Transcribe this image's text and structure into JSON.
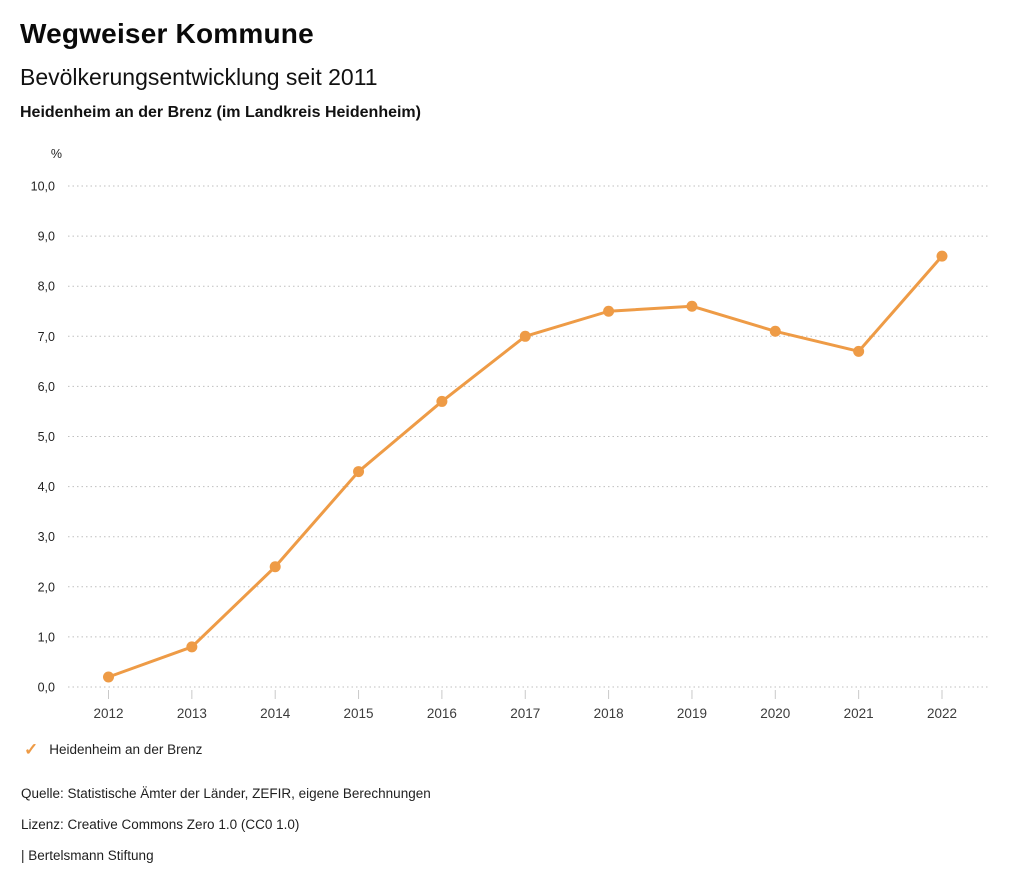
{
  "header": {
    "title": "Wegweiser Kommune",
    "subtitle": "Bevölkerungsentwicklung seit 2011",
    "region": "Heidenheim an der Brenz (im Landkreis Heidenheim)"
  },
  "chart_data": {
    "type": "line",
    "title": "Bevölkerungsentwicklung seit 2011",
    "subtitle": "Heidenheim an der Brenz (im Landkreis Heidenheim)",
    "unit": "%",
    "xlabel": "",
    "ylabel": "%",
    "categories": [
      "2012",
      "2013",
      "2014",
      "2015",
      "2016",
      "2017",
      "2018",
      "2019",
      "2020",
      "2021",
      "2022"
    ],
    "series": [
      {
        "name": "Heidenheim an der Brenz",
        "values": [
          0.2,
          0.8,
          2.4,
          4.3,
          5.7,
          7.0,
          7.5,
          7.6,
          7.1,
          6.7,
          8.6
        ],
        "color": "#EE9B46"
      }
    ],
    "ylim": [
      0,
      10
    ],
    "ytick_step": 1,
    "ytick_labels": [
      "0,0",
      "1,0",
      "2,0",
      "3,0",
      "4,0",
      "5,0",
      "6,0",
      "7,0",
      "8,0",
      "9,0",
      "10,0"
    ],
    "grid": "horizontal-dotted",
    "legend_position": "bottom-left"
  },
  "legend": {
    "check_icon": "✓",
    "label": "Heidenheim an der Brenz"
  },
  "footer": {
    "source": "Quelle: Statistische Ämter der Länder, ZEFIR, eigene Berechnungen",
    "license": "Lizenz: Creative Commons Zero 1.0 (CC0 1.0)",
    "attribution": "| Bertelsmann Stiftung"
  },
  "colors": {
    "accent": "#EE9B46",
    "grid": "#bfbfbf",
    "tick": "#c9c9c9",
    "axis_text": "#3c3c3c",
    "text": "#1a1a1a"
  }
}
